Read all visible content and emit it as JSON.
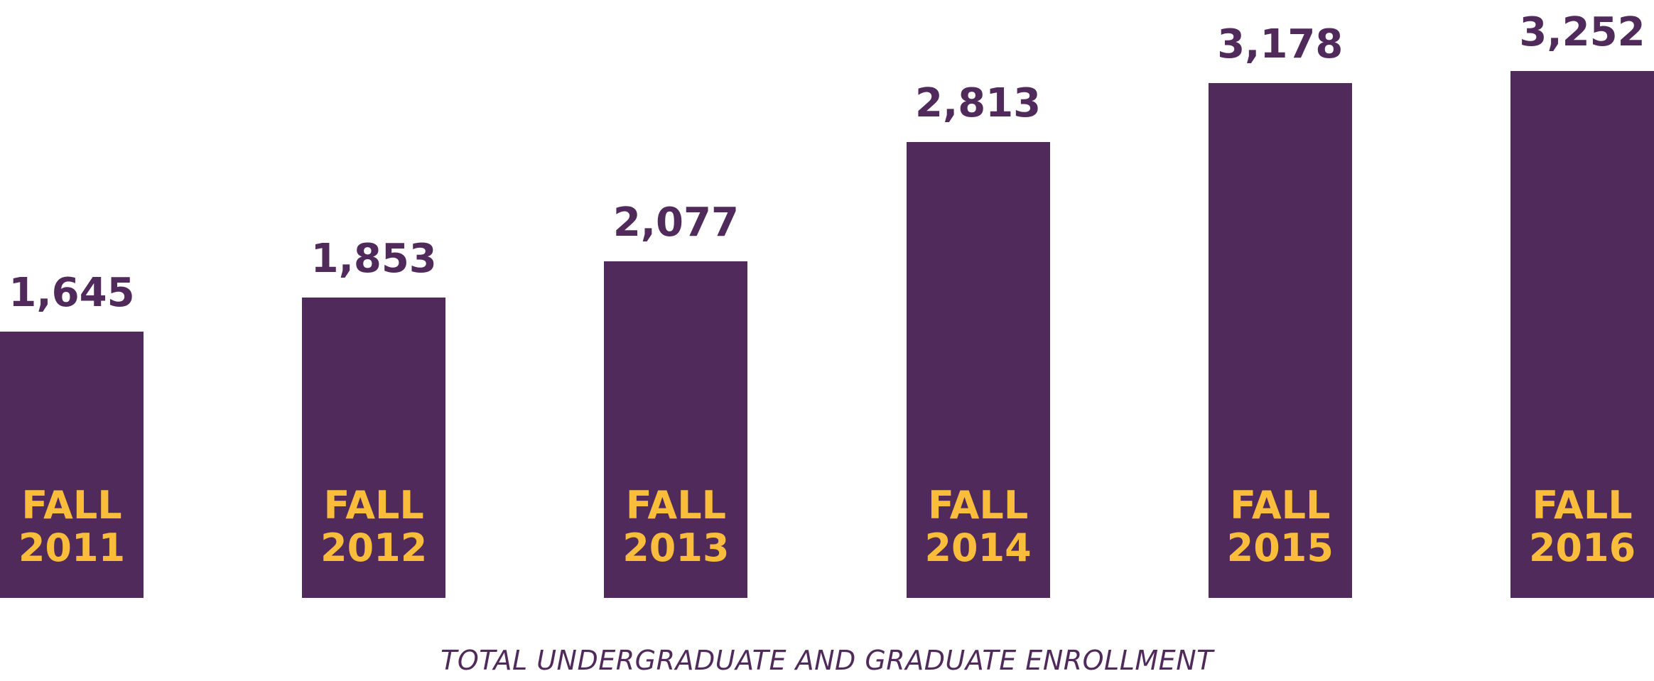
{
  "chart_data": {
    "type": "bar",
    "title": "TOTAL UNDERGRADUATE AND GRADUATE ENROLLMENT",
    "categories": [
      "FALL 2011",
      "FALL 2012",
      "FALL 2013",
      "FALL 2014",
      "FALL 2015",
      "FALL 2016"
    ],
    "values": [
      1645,
      1853,
      2077,
      2813,
      3178,
      3252
    ],
    "value_labels": [
      "1,645",
      "1,853",
      "2,077",
      "2,813",
      "3,178",
      "3,252"
    ],
    "color": "#4f2a5a",
    "label_color": "#f9bc3b"
  }
}
